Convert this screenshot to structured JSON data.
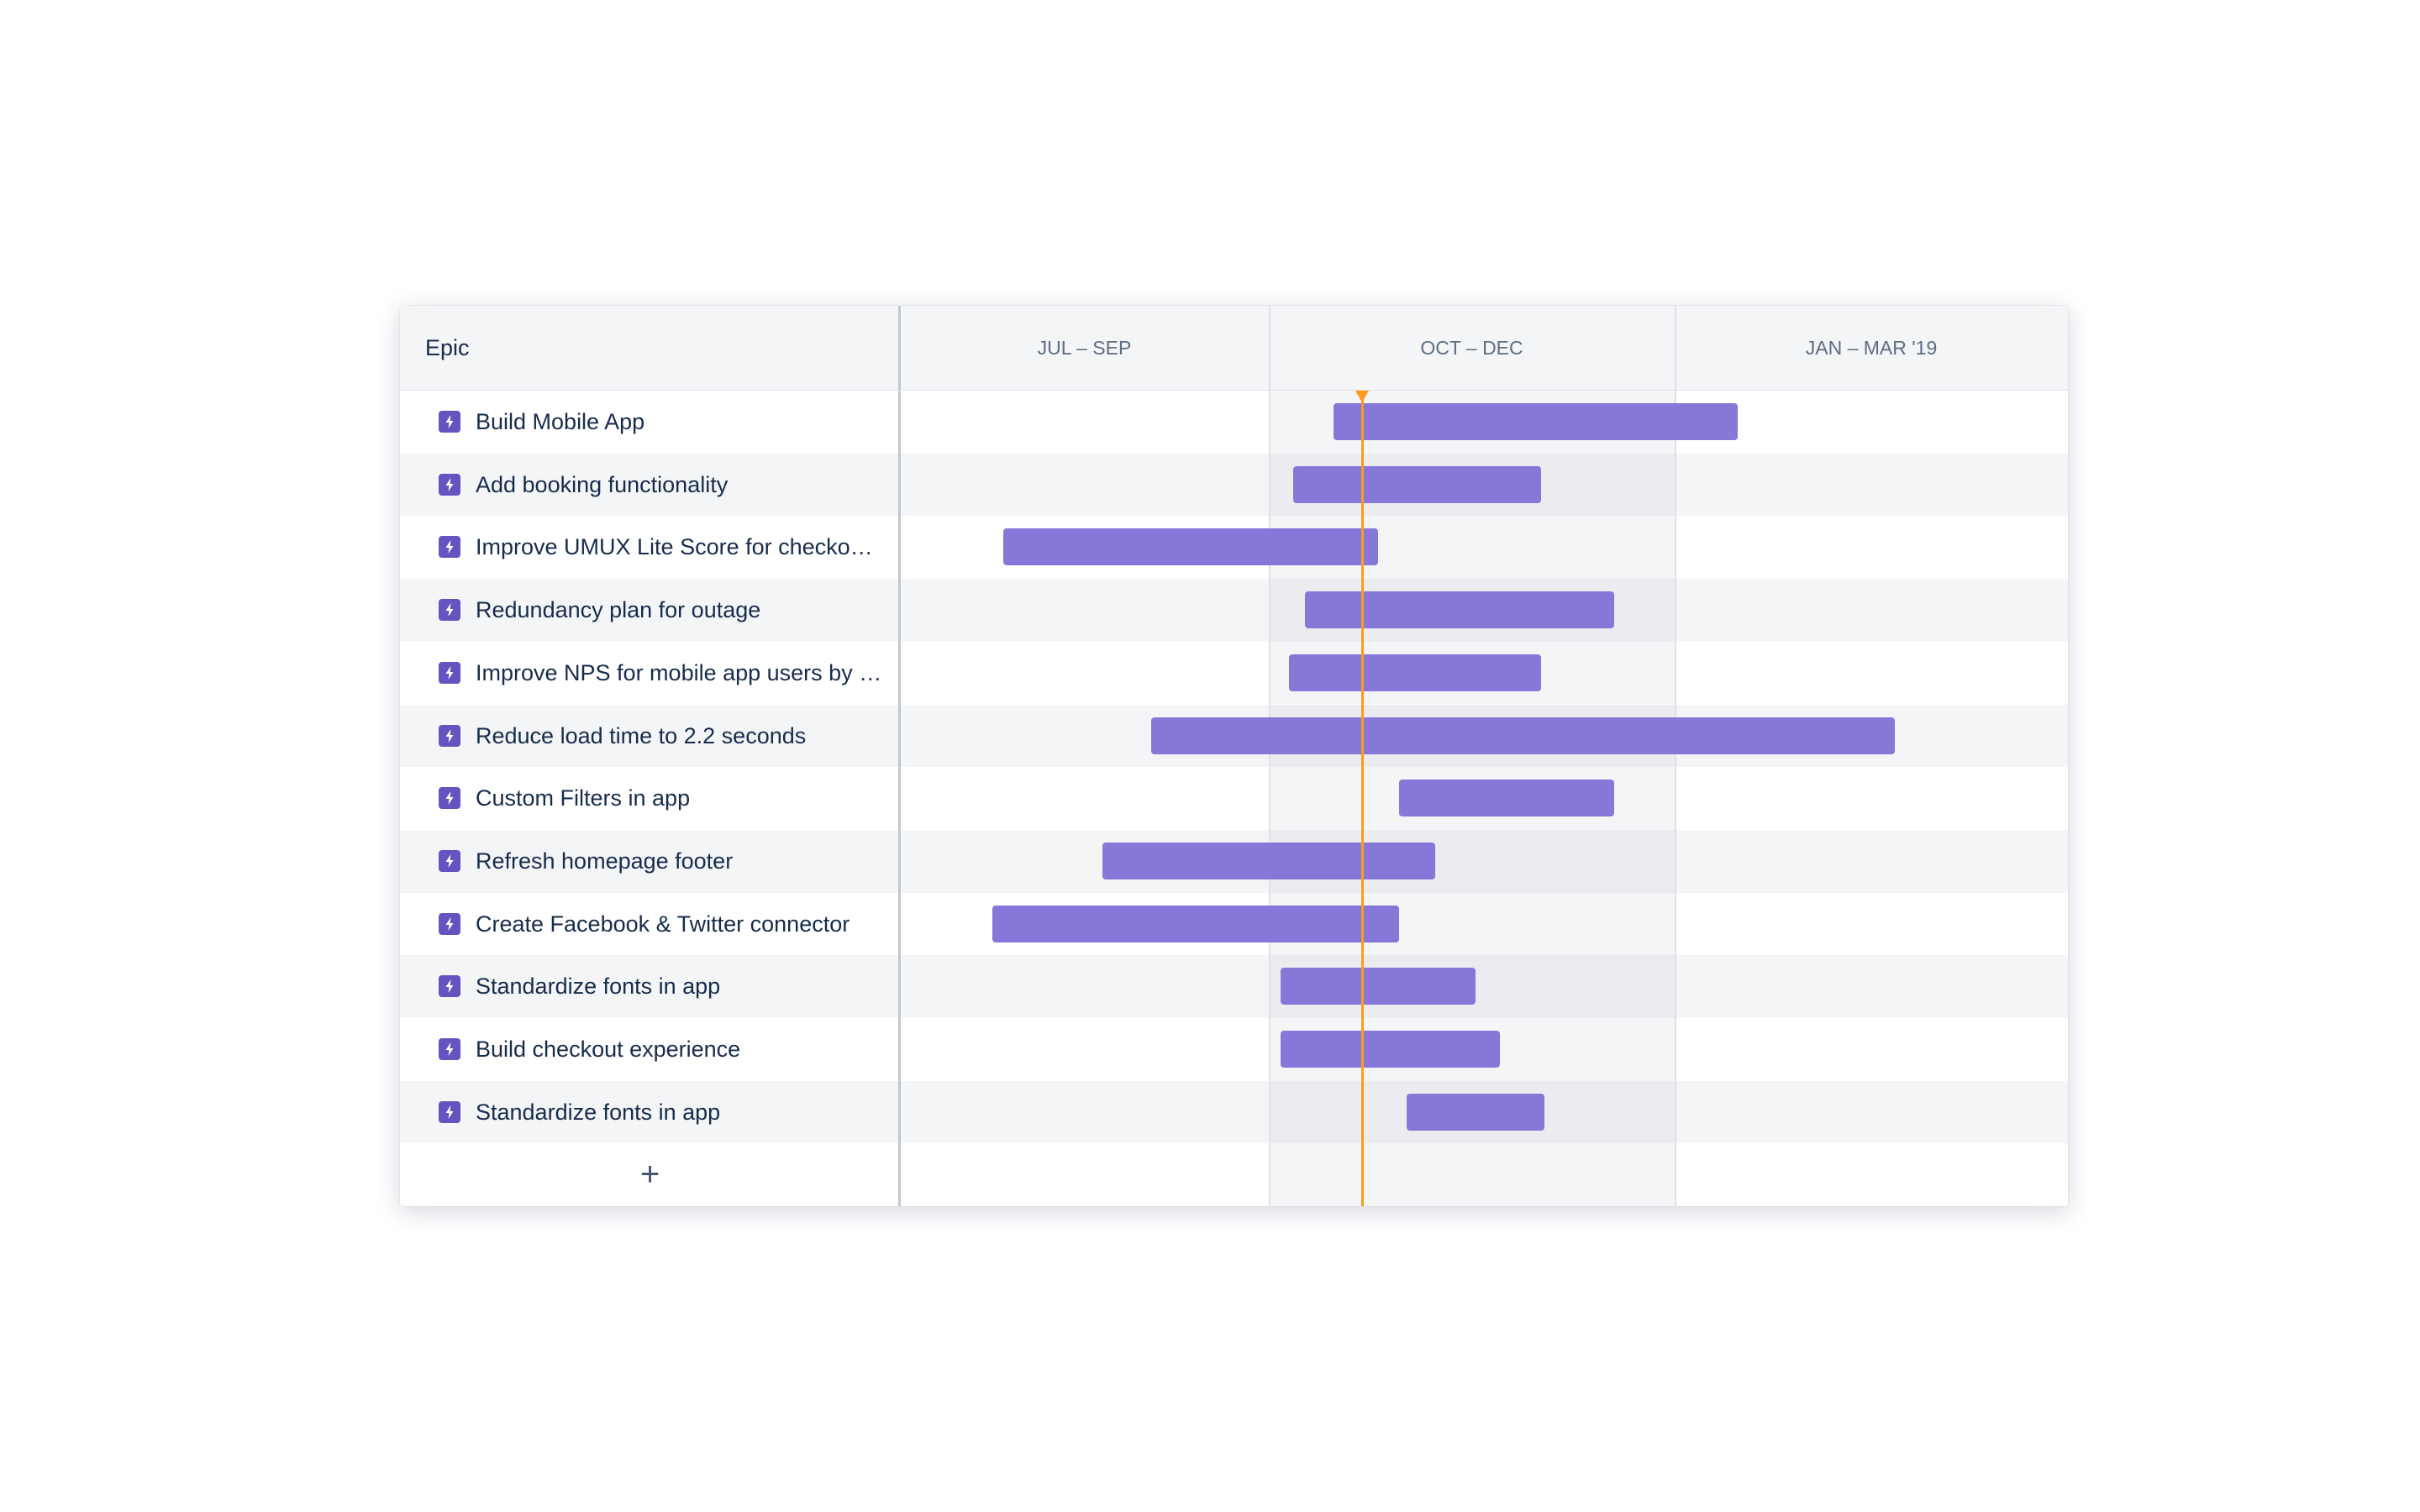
{
  "header": {
    "epic_label": "Epic"
  },
  "timeline": {
    "columns": [
      "JUL – SEP",
      "OCT – DEC",
      "JAN – MAR '19"
    ],
    "today": 1.23
  },
  "rows": [
    {
      "label": "Build Mobile App",
      "start": 1.16,
      "end": 2.16
    },
    {
      "label": "Add booking functionality",
      "start": 1.06,
      "end": 1.67
    },
    {
      "label": "Improve UMUX Lite Score for checko…",
      "start": 0.28,
      "end": 1.27
    },
    {
      "label": "Redundancy plan for outage",
      "start": 1.09,
      "end": 1.85
    },
    {
      "label": "Improve NPS for mobile app users by …",
      "start": 1.05,
      "end": 1.67
    },
    {
      "label": "Reduce load time to 2.2 seconds",
      "start": 0.68,
      "end": 2.56
    },
    {
      "label": "Custom Filters in app",
      "start": 1.32,
      "end": 1.85
    },
    {
      "label": "Refresh homepage footer",
      "start": 0.55,
      "end": 1.41
    },
    {
      "label": "Create Facebook & Twitter connector",
      "start": 0.25,
      "end": 1.32
    },
    {
      "label": "Standardize fonts in app",
      "start": 1.03,
      "end": 1.51
    },
    {
      "label": "Build checkout experience",
      "start": 1.03,
      "end": 1.57
    },
    {
      "label": "Standardize fonts in app",
      "start": 1.34,
      "end": 1.68
    }
  ],
  "add_button": "+"
}
